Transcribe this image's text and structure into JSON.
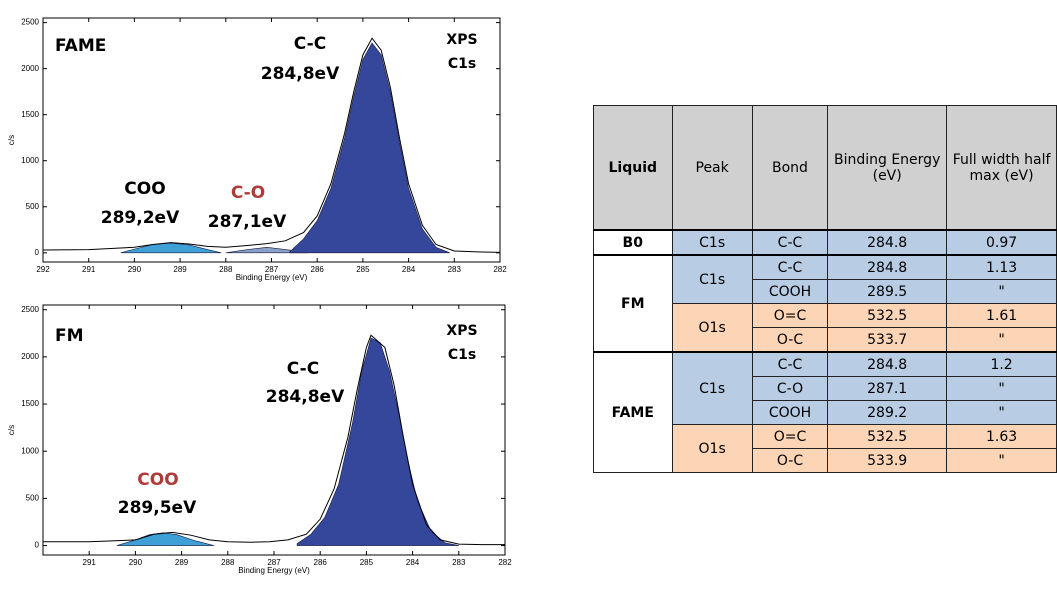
{
  "chart_data": [
    {
      "type": "area",
      "annotations": [
        {
          "text": "FAME",
          "color": "#000000"
        },
        {
          "text": "C-C",
          "color": "#000000"
        },
        {
          "text": "284,8eV",
          "color": "#000000"
        },
        {
          "text": "XPS",
          "color": "#000000"
        },
        {
          "text": "C1s",
          "color": "#000000"
        },
        {
          "text": "COO",
          "color": "#000000"
        },
        {
          "text": "289,2eV",
          "color": "#000000"
        },
        {
          "text": "C-O",
          "color": "#b03a3a"
        },
        {
          "text": "287,1eV",
          "color": "#000000"
        }
      ],
      "x_label": "Binding Energy (eV)",
      "y_label": "c/s",
      "xlim": [
        292,
        282
      ],
      "xticks": [
        292,
        291,
        290,
        289,
        288,
        287,
        286,
        285,
        284,
        283,
        282
      ],
      "ylim": [
        -100,
        2550
      ],
      "yticks": [
        0,
        500,
        1000,
        1500,
        2000,
        2500
      ],
      "series": [
        {
          "type": "area",
          "color": "#3ea0d6",
          "x": [
            290.3,
            290,
            289.6,
            289.2,
            288.8,
            288.4,
            288.1
          ],
          "values": [
            0,
            40,
            90,
            105,
            85,
            35,
            0
          ]
        },
        {
          "type": "area",
          "color": "#8aa0c8",
          "x": [
            288,
            287.6,
            287.1,
            286.6,
            286.2
          ],
          "values": [
            0,
            30,
            60,
            30,
            0
          ]
        },
        {
          "type": "area",
          "color": "#34479a",
          "x": [
            286.6,
            286.3,
            286,
            285.7,
            285.4,
            285.2,
            285,
            284.8,
            284.6,
            284.4,
            284.2,
            284,
            283.7,
            283.4,
            283.1
          ],
          "values": [
            10,
            150,
            350,
            700,
            1250,
            1700,
            2100,
            2280,
            2150,
            1750,
            1200,
            700,
            260,
            60,
            0
          ]
        },
        {
          "type": "line",
          "color": "#000000",
          "x": [
            292,
            291,
            290,
            289.6,
            289.2,
            288.8,
            288.4,
            288,
            287.5,
            287.1,
            286.7,
            286.3,
            286,
            285.7,
            285.4,
            285.2,
            285,
            284.8,
            284.6,
            284.4,
            284.2,
            284,
            283.7,
            283.4,
            283,
            282.5,
            282
          ],
          "values": [
            30,
            35,
            60,
            90,
            110,
            95,
            70,
            60,
            80,
            100,
            130,
            220,
            400,
            750,
            1300,
            1750,
            2150,
            2330,
            2200,
            1800,
            1250,
            750,
            300,
            90,
            20,
            10,
            5
          ]
        }
      ]
    },
    {
      "type": "area",
      "annotations": [
        {
          "text": "FM",
          "color": "#000000"
        },
        {
          "text": "C-C",
          "color": "#000000"
        },
        {
          "text": "284,8eV",
          "color": "#000000"
        },
        {
          "text": "XPS",
          "color": "#000000"
        },
        {
          "text": "C1s",
          "color": "#000000"
        },
        {
          "text": "COO",
          "color": "#b03a3a"
        },
        {
          "text": "289,5eV",
          "color": "#000000"
        }
      ],
      "x_label": "Binding Energy (eV)",
      "y_label": "c/s",
      "xlim": [
        292,
        282
      ],
      "xticks": [
        291,
        290,
        289,
        288,
        287,
        286,
        285,
        284,
        283,
        282
      ],
      "ylim": [
        -100,
        2550
      ],
      "yticks": [
        0,
        500,
        1000,
        1500,
        2000,
        2500
      ],
      "series": [
        {
          "type": "area",
          "color": "#3ea0d6",
          "x": [
            290.4,
            290,
            289.7,
            289.4,
            289.1,
            288.7,
            288.3
          ],
          "values": [
            0,
            60,
            115,
            135,
            115,
            50,
            0
          ]
        },
        {
          "type": "area",
          "color": "#34479a",
          "x": [
            286.5,
            286.2,
            285.9,
            285.6,
            285.3,
            285.1,
            284.9,
            284.7,
            284.5,
            284.3,
            284.1,
            283.9,
            283.6,
            283.3,
            283
          ],
          "values": [
            20,
            120,
            300,
            650,
            1300,
            1850,
            2200,
            2150,
            1850,
            1400,
            900,
            480,
            150,
            30,
            0
          ]
        },
        {
          "type": "line",
          "color": "#000000",
          "x": [
            292,
            291,
            290,
            289.6,
            289.2,
            288.8,
            288.4,
            288,
            287.5,
            287.1,
            286.7,
            286.3,
            286,
            285.7,
            285.4,
            285.2,
            285,
            284.9,
            284.6,
            284.4,
            284.2,
            284,
            283.7,
            283.4,
            283,
            282.5,
            282
          ],
          "values": [
            40,
            40,
            60,
            120,
            140,
            110,
            60,
            40,
            35,
            40,
            60,
            120,
            280,
            600,
            1150,
            1650,
            2100,
            2230,
            2100,
            1700,
            1150,
            650,
            220,
            60,
            15,
            10,
            10
          ]
        }
      ]
    }
  ],
  "table": {
    "header": [
      "Liquid",
      "Peak",
      "Bond",
      "Binding Energy (eV)",
      "Full width half max (eV)"
    ],
    "groups": [
      {
        "liquid": "B0",
        "peaks": [
          {
            "peak": "C1s",
            "color": "#b8cce4",
            "rows": [
              [
                "C-C",
                "284.8",
                "0.97"
              ]
            ]
          }
        ]
      },
      {
        "liquid": "FM",
        "peaks": [
          {
            "peak": "C1s",
            "color": "#b8cce4",
            "rows": [
              [
                "C-C",
                "284.8",
                "1.13"
              ],
              [
                "COOH",
                "289.5",
                "\""
              ]
            ]
          },
          {
            "peak": "O1s",
            "color": "#fbd5b5",
            "rows": [
              [
                "O=C",
                "532.5",
                "1.61"
              ],
              [
                "O-C",
                "533.7",
                "\""
              ]
            ]
          }
        ]
      },
      {
        "liquid": "FAME",
        "peaks": [
          {
            "peak": "C1s",
            "color": "#b8cce4",
            "rows": [
              [
                "C-C",
                "284.8",
                "1.2"
              ],
              [
                "C-O",
                "287.1",
                "\""
              ],
              [
                "COOH",
                "289.2",
                "\""
              ]
            ]
          },
          {
            "peak": "O1s",
            "color": "#fbd5b5",
            "rows": [
              [
                "O=C",
                "532.5",
                "1.63"
              ],
              [
                "O-C",
                "533.9",
                "\""
              ]
            ]
          }
        ]
      }
    ]
  }
}
